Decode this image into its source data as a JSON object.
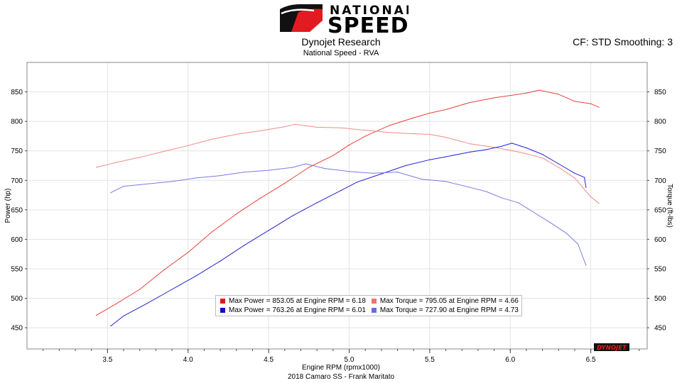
{
  "header": {
    "logo_line1": "NATIONAL",
    "logo_line2": "SPEED",
    "title": "Dynojet Research",
    "subtitle": "National Speed - RVA",
    "settings": "CF: STD Smoothing: 3"
  },
  "footer": {
    "caption": "2018 Camaro SS - Frank Maritato"
  },
  "brand": {
    "watermark": "DYNOJET"
  },
  "legend": {
    "entries": [
      "Max Power = 853.05 at Engine RPM = 6.18",
      "Max Torque = 795.05 at Engine RPM = 4.66",
      "Max Power = 763.26 at Engine RPM = 6.01",
      "Max Torque = 727.90 at Engine RPM = 4.73"
    ]
  },
  "colors": {
    "power_run1": "#e8413c",
    "torque_run1": "#f08a86",
    "power_run2": "#2323d0",
    "torque_run2": "#7a7ae6",
    "legend_power_run1": "#e01818",
    "legend_torque_run1": "#f07070",
    "legend_power_run2": "#1010c8",
    "legend_torque_run2": "#6b6be0",
    "grid": "#e3e3e3"
  },
  "chart_data": {
    "type": "line",
    "title": "Dynojet Research",
    "subtitle": "National Speed - RVA",
    "xlabel": "Engine RPM (rpmx1000)",
    "ylabel": "Power (hp)",
    "y2label": "Torque (ft-lbs)",
    "xlim": [
      3.0,
      6.85
    ],
    "ylim": [
      414,
      900
    ],
    "xticks": [
      3.5,
      4.0,
      4.5,
      5.0,
      5.5,
      6.0,
      6.5
    ],
    "yticks": [
      450,
      500,
      550,
      600,
      650,
      700,
      750,
      800,
      850
    ],
    "grid": true,
    "legend_position": "bottom-center",
    "series": [
      {
        "axis": "left",
        "color_key": "power_run1",
        "x": [
          3.43,
          3.55,
          3.7,
          3.85,
          4.0,
          4.15,
          4.3,
          4.45,
          4.6,
          4.75,
          4.9,
          5.0,
          5.1,
          5.25,
          5.4,
          5.5,
          5.6,
          5.75,
          5.9,
          6.0,
          6.1,
          6.18,
          6.3,
          6.4,
          6.5,
          6.55
        ],
        "values": [
          471,
          490,
          515,
          548,
          578,
          613,
          643,
          670,
          695,
          722,
          742,
          760,
          775,
          793,
          806,
          814,
          820,
          832,
          840,
          844,
          848,
          853,
          846,
          834,
          830,
          824
        ]
      },
      {
        "axis": "right",
        "color_key": "torque_run1",
        "x": [
          3.43,
          3.55,
          3.7,
          3.85,
          4.0,
          4.15,
          4.3,
          4.45,
          4.6,
          4.66,
          4.8,
          4.95,
          5.1,
          5.25,
          5.4,
          5.5,
          5.6,
          5.75,
          5.9,
          6.0,
          6.1,
          6.2,
          6.3,
          6.4,
          6.5,
          6.55
        ],
        "values": [
          722,
          730,
          739,
          749,
          759,
          770,
          778,
          784,
          791,
          795,
          790,
          789,
          785,
          781,
          779,
          778,
          773,
          762,
          756,
          751,
          745,
          738,
          722,
          704,
          672,
          661
        ]
      },
      {
        "axis": "left",
        "color_key": "power_run2",
        "x": [
          3.52,
          3.6,
          3.75,
          3.9,
          4.05,
          4.2,
          4.35,
          4.5,
          4.65,
          4.8,
          4.95,
          5.05,
          5.2,
          5.35,
          5.5,
          5.6,
          5.75,
          5.85,
          5.95,
          6.01,
          6.1,
          6.2,
          6.3,
          6.4,
          6.46,
          6.47
        ],
        "values": [
          453,
          470,
          492,
          515,
          538,
          563,
          590,
          615,
          640,
          662,
          683,
          697,
          711,
          725,
          735,
          740,
          748,
          752,
          758,
          763,
          755,
          744,
          728,
          712,
          705,
          688
        ]
      },
      {
        "axis": "right",
        "color_key": "torque_run2",
        "x": [
          3.52,
          3.6,
          3.75,
          3.9,
          4.05,
          4.2,
          4.35,
          4.5,
          4.65,
          4.73,
          4.85,
          5.0,
          5.15,
          5.3,
          5.45,
          5.6,
          5.75,
          5.85,
          5.95,
          6.05,
          6.15,
          6.25,
          6.35,
          6.42,
          6.47
        ],
        "values": [
          679,
          690,
          694,
          698,
          704,
          708,
          714,
          717,
          722,
          728,
          720,
          715,
          712,
          714,
          702,
          698,
          688,
          681,
          670,
          662,
          645,
          628,
          610,
          592,
          556
        ]
      }
    ]
  }
}
